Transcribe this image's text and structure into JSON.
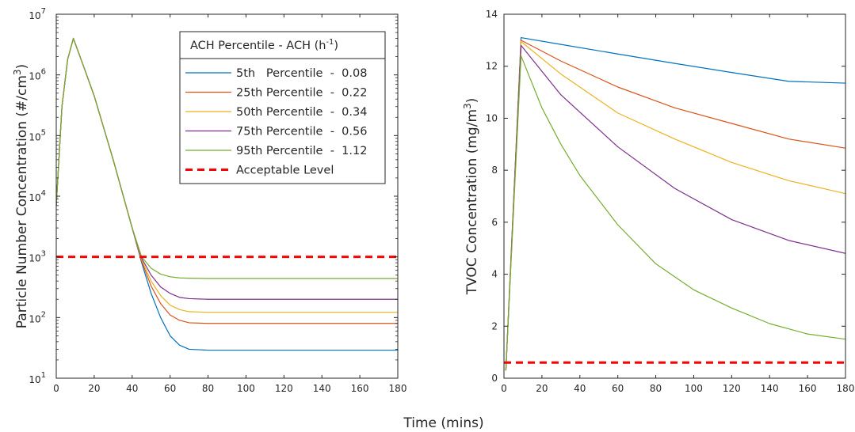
{
  "figure": {
    "xlabel": "Time (mins)"
  },
  "chart_data": [
    {
      "type": "line",
      "yscale": "log",
      "ylabel": "Particle Number Concentration (#/cm³)",
      "ylabel_parts": [
        "Particle Number Concentration (#/cm",
        "3",
        ")"
      ],
      "xlim": [
        0,
        180
      ],
      "ylim": [
        10,
        10000000
      ],
      "xticks": [
        0,
        20,
        40,
        60,
        80,
        100,
        120,
        140,
        160,
        180
      ],
      "yticks": [
        {
          "value": 10,
          "base": "10",
          "exp": "1"
        },
        {
          "value": 100,
          "base": "10",
          "exp": "2"
        },
        {
          "value": 1000,
          "base": "10",
          "exp": "3"
        },
        {
          "value": 10000,
          "base": "10",
          "exp": "4"
        },
        {
          "value": 100000,
          "base": "10",
          "exp": "5"
        },
        {
          "value": 1000000,
          "base": "10",
          "exp": "6"
        },
        {
          "value": 10000000,
          "base": "10",
          "exp": "7"
        }
      ],
      "grid": false,
      "legend": {
        "placement": "top-right",
        "title_parts": [
          "ACH Percentile - ACH (h",
          "-1",
          ")"
        ],
        "entries": [
          {
            "label": "5th   Percentile  -  0.08",
            "color": "#0072BD",
            "style": "solid"
          },
          {
            "label": "25th Percentile  -  0.22",
            "color": "#D95319",
            "style": "solid"
          },
          {
            "label": "50th Percentile  -  0.34",
            "color": "#EDB120",
            "style": "solid"
          },
          {
            "label": "75th Percentile  -  0.56",
            "color": "#7E2F8E",
            "style": "solid"
          },
          {
            "label": "95th Percentile  -  1.12",
            "color": "#77AC30",
            "style": "solid"
          },
          {
            "label": "Acceptable Level",
            "color": "#FF0000",
            "style": "dashed"
          }
        ]
      },
      "series": [
        {
          "color": "#0072BD",
          "x": [
            0,
            3,
            6,
            9,
            14,
            20,
            30,
            40,
            45,
            50,
            55,
            60,
            65,
            70,
            80,
            100,
            140,
            180
          ],
          "y": [
            7000,
            300000,
            1800000,
            4000000,
            1500000,
            450000,
            40000,
            3000,
            800,
            250,
            100,
            50,
            35,
            30,
            29,
            29,
            29,
            29
          ]
        },
        {
          "color": "#D95319",
          "x": [
            0,
            3,
            6,
            9,
            14,
            20,
            30,
            40,
            45,
            50,
            55,
            60,
            65,
            70,
            80,
            100,
            140,
            180
          ],
          "y": [
            7000,
            300000,
            1800000,
            4000000,
            1500000,
            450000,
            40000,
            3000,
            850,
            330,
            170,
            110,
            90,
            82,
            80,
            80,
            80,
            80
          ]
        },
        {
          "color": "#EDB120",
          "x": [
            0,
            3,
            6,
            9,
            14,
            20,
            30,
            40,
            45,
            50,
            55,
            60,
            65,
            70,
            80,
            100,
            140,
            180
          ],
          "y": [
            7000,
            300000,
            1800000,
            4000000,
            1500000,
            450000,
            40000,
            3000,
            900,
            400,
            230,
            160,
            135,
            125,
            122,
            122,
            122,
            122
          ]
        },
        {
          "color": "#7E2F8E",
          "x": [
            0,
            3,
            6,
            9,
            14,
            20,
            30,
            40,
            45,
            50,
            55,
            60,
            65,
            70,
            80,
            100,
            140,
            180
          ],
          "y": [
            7000,
            300000,
            1800000,
            4000000,
            1500000,
            450000,
            40000,
            3000,
            950,
            500,
            320,
            250,
            215,
            205,
            200,
            200,
            200,
            200
          ]
        },
        {
          "color": "#77AC30",
          "x": [
            0,
            3,
            6,
            9,
            14,
            20,
            30,
            40,
            45,
            50,
            55,
            60,
            65,
            70,
            80,
            100,
            140,
            180
          ],
          "y": [
            7000,
            300000,
            1800000,
            4000000,
            1500000,
            450000,
            40000,
            3000,
            1000,
            650,
            520,
            470,
            450,
            445,
            440,
            440,
            440,
            440
          ]
        },
        {
          "color": "#FF0000",
          "dashed": true,
          "x": [
            0,
            180
          ],
          "y": [
            1000,
            1000
          ]
        }
      ]
    },
    {
      "type": "line",
      "yscale": "linear",
      "ylabel": "TVOC Concentration (mg/m³)",
      "ylabel_parts": [
        "TVOC Concentration (mg/m",
        "3",
        ")"
      ],
      "xlim": [
        0,
        180
      ],
      "ylim": [
        0,
        14
      ],
      "xticks": [
        0,
        20,
        40,
        60,
        80,
        100,
        120,
        140,
        160,
        180
      ],
      "yticks": [
        0,
        2,
        4,
        6,
        8,
        10,
        12,
        14
      ],
      "grid": false,
      "series": [
        {
          "color": "#0072BD",
          "x": [
            1,
            9,
            30,
            60,
            90,
            120,
            150,
            180
          ],
          "y": [
            0.3,
            13.1,
            12.84,
            12.47,
            12.11,
            11.76,
            11.42,
            11.35
          ]
        },
        {
          "color": "#D95319",
          "x": [
            1,
            9,
            30,
            60,
            90,
            120,
            150,
            180
          ],
          "y": [
            0.3,
            13.0,
            12.2,
            11.2,
            10.4,
            9.8,
            9.2,
            8.85
          ]
        },
        {
          "color": "#EDB120",
          "x": [
            1,
            9,
            30,
            60,
            90,
            120,
            150,
            180
          ],
          "y": [
            0.3,
            12.95,
            11.7,
            10.2,
            9.2,
            8.3,
            7.6,
            7.1
          ]
        },
        {
          "color": "#7E2F8E",
          "x": [
            1,
            9,
            30,
            60,
            90,
            120,
            150,
            180
          ],
          "y": [
            0.3,
            12.8,
            10.9,
            8.9,
            7.3,
            6.1,
            5.3,
            4.8
          ]
        },
        {
          "color": "#77AC30",
          "x": [
            1,
            9,
            20,
            30,
            40,
            60,
            80,
            100,
            120,
            140,
            160,
            180
          ],
          "y": [
            0.3,
            12.4,
            10.4,
            9.0,
            7.8,
            5.9,
            4.4,
            3.4,
            2.7,
            2.1,
            1.7,
            1.5
          ]
        },
        {
          "color": "#FF0000",
          "dashed": true,
          "x": [
            0,
            180
          ],
          "y": [
            0.6,
            0.6
          ]
        }
      ]
    }
  ]
}
